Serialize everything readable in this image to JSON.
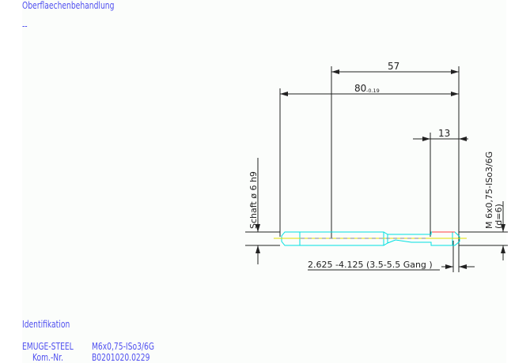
{
  "header": {
    "title": "Oberflaechenbehandlung",
    "value": "--"
  },
  "drawing": {
    "dim_total_length": "57",
    "dim_length_main": "80",
    "dim_length_tolerance": "-0.19",
    "dim_thread_length": "13",
    "shank_label": "Schaft  ø 6  h9",
    "thread_label": "M 6x0,75-ISo3/6G",
    "thread_d_label": "(d=6)",
    "chamfer_label": "2.625  -4.125 (3.5-5.5 Gang  )",
    "colors": {
      "outline": "#00e0e0",
      "centerline": "#e0e000",
      "thread_mark": "#ff4040",
      "dimension": "#222222",
      "text": "#5050f0"
    }
  },
  "footer": {
    "title": "Identifikation",
    "brand": "EMUGE-STEEL",
    "designation": "M6x0,75-ISo3/6G",
    "kom_label": "Kom.-Nr.",
    "kom_value": "B0201020.0229"
  }
}
